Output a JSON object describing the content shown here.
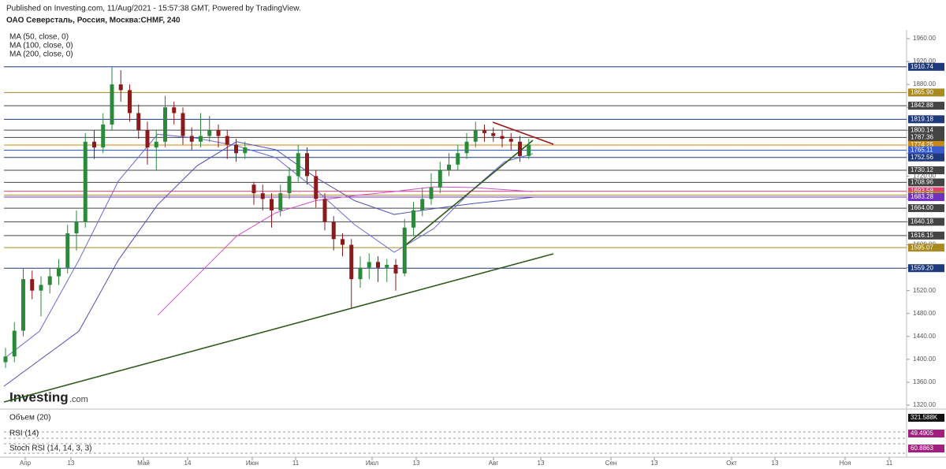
{
  "chart_data": {
    "type": "candlestick",
    "published": "Published on Investing.com, 11/Aug/2021 - 15:57:38 GMT, Powered by TradingView.",
    "title": "ОАО Северсталь, Россия, Москва:CHMF, 240",
    "logo": "Investing",
    "logo_suffix": ".com",
    "xlim": [
      -5.4,
      223.6
    ],
    "xticks": [
      {
        "value": 0,
        "label": "Апр"
      },
      {
        "value": 11.6,
        "label": "13"
      },
      {
        "value": 30,
        "label": "Май"
      },
      {
        "value": 41.2,
        "label": "14"
      },
      {
        "value": 57.6,
        "label": "Июн"
      },
      {
        "value": 68.6,
        "label": "11"
      },
      {
        "value": 88,
        "label": "Июл"
      },
      {
        "value": 99.2,
        "label": "13"
      },
      {
        "value": 118.8,
        "label": "Авг"
      },
      {
        "value": 130.8,
        "label": "13"
      },
      {
        "value": 148.6,
        "label": "Сен"
      },
      {
        "value": 159.6,
        "label": "13"
      },
      {
        "value": 179.2,
        "label": "Окт"
      },
      {
        "value": 190.2,
        "label": "13"
      },
      {
        "value": 208,
        "label": "Ноя"
      },
      {
        "value": 219.2,
        "label": "11"
      }
    ],
    "ylim": [
      1320,
      1960
    ],
    "yticks": [
      {
        "value": 1320,
        "label": "1320.00"
      },
      {
        "value": 1360,
        "label": "1360.00"
      },
      {
        "value": 1400,
        "label": "1400.00"
      },
      {
        "value": 1440,
        "label": "1440.00"
      },
      {
        "value": 1480,
        "label": "1480.00"
      },
      {
        "value": 1520,
        "label": "1520.00"
      },
      {
        "value": 1560,
        "label": "1560.00"
      },
      {
        "value": 1600,
        "label": "1600.00"
      },
      {
        "value": 1640,
        "label": "1640.00"
      },
      {
        "value": 1680,
        "label": "1680.00"
      },
      {
        "value": 1720,
        "label": "1720.00"
      },
      {
        "value": 1760,
        "label": "1760.00"
      },
      {
        "value": 1800,
        "label": "1800.00"
      },
      {
        "value": 1840,
        "label": "1840.00"
      },
      {
        "value": 1880,
        "label": "1880.00"
      },
      {
        "value": 1920,
        "label": "1920.00"
      },
      {
        "value": 1960,
        "label": "1960.00"
      }
    ],
    "up_color": "#2a8a3a",
    "down_color": "#8b1a1a",
    "x": [
      -5,
      -2.75,
      -0.5,
      1.75,
      4,
      6.25,
      8.5,
      10.75,
      13,
      15.25,
      17.5,
      19.75,
      22,
      24.25,
      26.5,
      28.75,
      31,
      33.25,
      35.5,
      37.75,
      40,
      42.25,
      44.5,
      46.75,
      49,
      51.25,
      53.5,
      55.75,
      58,
      60.25,
      62.5,
      64.75,
      67,
      69.25,
      71.5,
      73.75,
      76,
      78.25,
      80.5,
      82.75,
      85,
      87.25,
      89.5,
      91.75,
      94,
      96.25,
      98.5,
      100.75,
      103,
      105.25,
      107.5,
      109.75,
      112,
      114.25,
      116.5,
      118.75,
      121,
      123.25,
      125.5,
      127.75
    ],
    "open": [
      1395,
      1405,
      1450,
      1540,
      1520,
      1530,
      1545,
      1560,
      1620,
      1640,
      1780,
      1770,
      1810,
      1880,
      1870,
      1830,
      1800,
      1770,
      1780,
      1840,
      1830,
      1790,
      1780,
      1790,
      1800,
      1790,
      1775,
      1760,
      1705,
      1690,
      1680,
      1660,
      1690,
      1720,
      1760,
      1720,
      1680,
      1640,
      1610,
      1600,
      1540,
      1560,
      1570,
      1560,
      1565,
      1550,
      1630,
      1660,
      1680,
      1700,
      1730,
      1740,
      1760,
      1780,
      1800,
      1795,
      1790,
      1785,
      1780,
      1755
    ],
    "high": [
      1420,
      1465,
      1560,
      1555,
      1545,
      1560,
      1575,
      1635,
      1660,
      1795,
      1800,
      1830,
      1910,
      1905,
      1880,
      1845,
      1815,
      1800,
      1860,
      1850,
      1840,
      1805,
      1830,
      1825,
      1810,
      1800,
      1785,
      1780,
      1710,
      1705,
      1690,
      1705,
      1735,
      1775,
      1770,
      1730,
      1690,
      1650,
      1620,
      1610,
      1580,
      1585,
      1580,
      1575,
      1575,
      1645,
      1675,
      1700,
      1725,
      1745,
      1760,
      1775,
      1795,
      1815,
      1810,
      1805,
      1800,
      1795,
      1790,
      1785
    ],
    "low": [
      1385,
      1395,
      1440,
      1505,
      1475,
      1515,
      1530,
      1550,
      1590,
      1630,
      1750,
      1760,
      1800,
      1850,
      1815,
      1785,
      1740,
      1730,
      1770,
      1810,
      1775,
      1765,
      1770,
      1780,
      1770,
      1750,
      1745,
      1750,
      1670,
      1660,
      1630,
      1650,
      1680,
      1710,
      1705,
      1665,
      1625,
      1590,
      1580,
      1490,
      1525,
      1540,
      1535,
      1535,
      1520,
      1545,
      1615,
      1650,
      1670,
      1690,
      1720,
      1730,
      1750,
      1770,
      1780,
      1780,
      1770,
      1765,
      1745,
      1750
    ],
    "close": [
      1405,
      1450,
      1540,
      1520,
      1530,
      1545,
      1560,
      1620,
      1640,
      1780,
      1770,
      1810,
      1880,
      1870,
      1830,
      1800,
      1770,
      1780,
      1840,
      1830,
      1790,
      1780,
      1790,
      1800,
      1790,
      1775,
      1760,
      1770,
      1690,
      1680,
      1660,
      1690,
      1720,
      1760,
      1720,
      1680,
      1640,
      1610,
      1600,
      1540,
      1560,
      1570,
      1560,
      1565,
      1550,
      1630,
      1660,
      1680,
      1700,
      1730,
      1740,
      1760,
      1780,
      1800,
      1795,
      1790,
      1785,
      1780,
      1755,
      1775
    ],
    "moving_averages": [
      {
        "name": "MA (50, close, 0)",
        "color": "#6a6ad8",
        "x": [
          -5.4,
          3.6,
          13.6,
          23.6,
          33.6,
          43.6,
          53.6,
          63.6,
          73.6,
          83.6,
          93.6,
          103.6,
          113.6,
          121.6,
          128.8
        ],
        "values": [
          1401,
          1449,
          1573,
          1711,
          1793,
          1786,
          1773,
          1752,
          1697,
          1635,
          1587,
          1628,
          1697,
          1745,
          1759
        ]
      },
      {
        "name": "MA (100, close, 0)",
        "color": "#5050b8",
        "x": [
          -5.4,
          13.6,
          23.6,
          33.6,
          43.6,
          53.6,
          63.6,
          73.6,
          83.6,
          93.6,
          103.6,
          113.6,
          128.8
        ],
        "values": [
          1353,
          1449,
          1573,
          1670,
          1738,
          1780,
          1766,
          1718,
          1677,
          1653,
          1663,
          1672,
          1683
        ]
      },
      {
        "name": "MA (200, close, 0)",
        "color": "#d050d0",
        "x": [
          33.6,
          43.6,
          53.6,
          63.6,
          73.6,
          83.6,
          93.6,
          103.6,
          113.6,
          128.8
        ],
        "values": [
          1477,
          1546,
          1615,
          1656,
          1677,
          1686,
          1693,
          1701,
          1700,
          1693
        ]
      }
    ],
    "trendlines": [
      {
        "color": "#2d5a1a",
        "x": [
          -5.4,
          134
        ],
        "values": [
          1325.5,
          1584.3
        ]
      },
      {
        "color": "#2d5a1a",
        "x": [
          96,
          128.8
        ],
        "values": [
          1596.7,
          1782.5
        ]
      },
      {
        "color": "#a01818",
        "x": [
          118.6,
          134
        ],
        "values": [
          1814.1,
          1775.6
        ]
      }
    ],
    "last_price": 1765.2,
    "levels": [
      {
        "value": 1910.74,
        "color": "#1f3a7a"
      },
      {
        "value": 1865.9,
        "label": "1865.90",
        "color": "#a88a20"
      },
      {
        "value": 1842.88,
        "color": "#444"
      },
      {
        "value": 1819.18,
        "color": "#1f3a7a"
      },
      {
        "value": 1800.14,
        "color": "#444"
      },
      {
        "value": 1787.36,
        "color": "#444"
      },
      {
        "value": 1774.25,
        "color": "#c88a10"
      },
      {
        "value": 1765.2,
        "label": "1765.20",
        "color": "#3a6ae0"
      },
      {
        "value": 1765.11,
        "color": "#3a5ad0"
      },
      {
        "value": 1752.56,
        "color": "#1f3a7a"
      },
      {
        "value": 1730.12,
        "color": "#444"
      },
      {
        "value": 1708.96,
        "color": "#444"
      },
      {
        "value": 1693.58,
        "color": "#e04070"
      },
      {
        "value": 1686.59,
        "color": "#a88a20"
      },
      {
        "value": 1683.28,
        "color": "#7030c0"
      },
      {
        "value": 1664.0,
        "label": "1664.00",
        "color": "#444"
      },
      {
        "value": 1640.18,
        "color": "#444"
      },
      {
        "value": 1616.15,
        "color": "#444"
      },
      {
        "value": 1595.07,
        "color": "#a88a20"
      },
      {
        "value": 1559.2,
        "label": "1559.20",
        "color": "#1f3a7a"
      }
    ],
    "panes": [
      {
        "name": "Объем (20)",
        "last": "321.588K"
      },
      {
        "name": "RSI (14)",
        "last": "49.4905"
      },
      {
        "name": "Stoch RSI (14, 14, 3, 3)",
        "last": "60.8863"
      }
    ]
  }
}
